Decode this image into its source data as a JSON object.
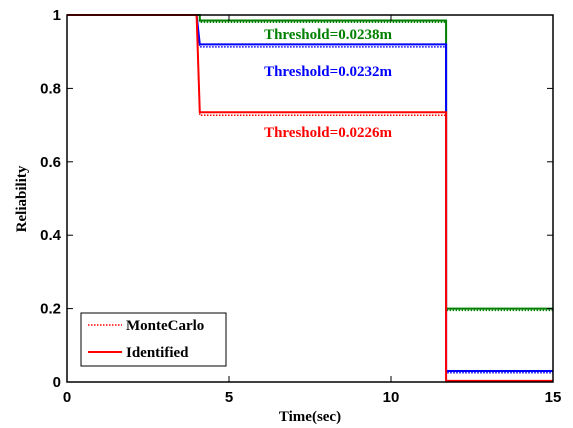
{
  "chart_data": {
    "type": "line",
    "xlabel": "Time(sec)",
    "ylabel": "Reliability",
    "xlim": [
      0,
      15
    ],
    "ylim": [
      0,
      1
    ],
    "xticks": [
      "0",
      "5",
      "10",
      "15"
    ],
    "yticks": [
      "0",
      "0.2",
      "0.4",
      "0.6",
      "0.8",
      "1"
    ],
    "legend": {
      "placement": "bottom-left",
      "entries": [
        {
          "label": "MonteCarlo",
          "style": "dotted"
        },
        {
          "label": "Identified",
          "style": "solid"
        }
      ]
    },
    "annotations": [
      {
        "text": "Threshold=0.0238m",
        "color": "#008000"
      },
      {
        "text": "Threshold=0.0232m",
        "color": "#0000ff"
      },
      {
        "text": "Threshold=0.0226m",
        "color": "#ff0000"
      }
    ],
    "series": [
      {
        "threshold": "0.0238m",
        "color": "#008000",
        "method": "Identified",
        "points": [
          [
            0,
            1
          ],
          [
            4.1,
            1
          ],
          [
            4.1,
            0.985
          ],
          [
            11.7,
            0.985
          ],
          [
            11.7,
            0.2
          ],
          [
            15,
            0.2
          ]
        ]
      },
      {
        "threshold": "0.0238m",
        "color": "#008000",
        "method": "MonteCarlo",
        "points": [
          [
            0,
            1
          ],
          [
            4.1,
            1
          ],
          [
            4.1,
            0.98
          ],
          [
            11.7,
            0.98
          ],
          [
            11.7,
            0.195
          ],
          [
            15,
            0.195
          ]
        ]
      },
      {
        "threshold": "0.0232m",
        "color": "#0000ff",
        "method": "Identified",
        "points": [
          [
            0,
            1
          ],
          [
            4.0,
            1
          ],
          [
            4.1,
            0.92
          ],
          [
            11.7,
            0.92
          ],
          [
            11.7,
            0.03
          ],
          [
            15,
            0.03
          ]
        ]
      },
      {
        "threshold": "0.0232m",
        "color": "#0000ff",
        "method": "MonteCarlo",
        "points": [
          [
            0,
            1
          ],
          [
            4.0,
            1
          ],
          [
            4.1,
            0.913
          ],
          [
            11.7,
            0.913
          ],
          [
            11.7,
            0.025
          ],
          [
            15,
            0.025
          ]
        ]
      },
      {
        "threshold": "0.0226m",
        "color": "#ff0000",
        "method": "Identified",
        "points": [
          [
            0,
            1
          ],
          [
            4.0,
            1
          ],
          [
            4.1,
            0.735
          ],
          [
            11.7,
            0.735
          ],
          [
            11.7,
            0.003
          ],
          [
            15,
            0.003
          ]
        ]
      },
      {
        "threshold": "0.0226m",
        "color": "#ff0000",
        "method": "MonteCarlo",
        "points": [
          [
            0,
            1
          ],
          [
            4.0,
            1
          ],
          [
            4.1,
            0.727
          ],
          [
            11.7,
            0.727
          ],
          [
            11.7,
            0.001
          ],
          [
            15,
            0.001
          ]
        ]
      }
    ]
  }
}
